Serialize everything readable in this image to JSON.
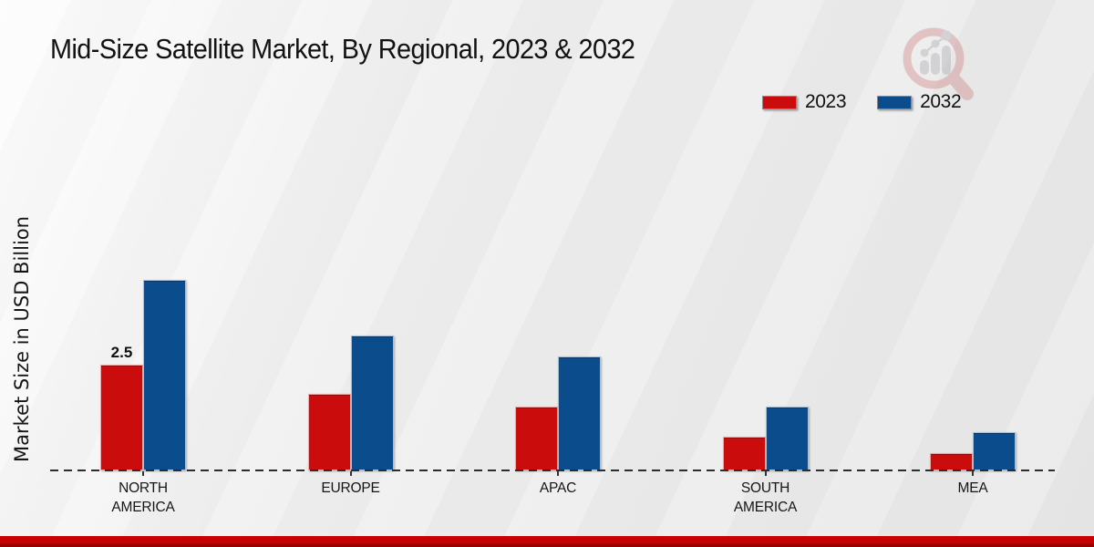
{
  "title": "Mid-Size Satellite Market, By Regional, 2023 & 2032",
  "chart_data": {
    "type": "bar",
    "title": "Mid-Size Satellite Market, By Regional, 2023 & 2032",
    "xlabel": "",
    "ylabel": "Market Size in USD Billion",
    "categories": [
      "NORTH AMERICA",
      "EUROPE",
      "APAC",
      "SOUTH AMERICA",
      "MEA"
    ],
    "category_lines": [
      [
        "NORTH",
        "AMERICA"
      ],
      [
        "EUROPE"
      ],
      [
        "APAC"
      ],
      [
        "SOUTH",
        "AMERICA"
      ],
      [
        "MEA"
      ]
    ],
    "series": [
      {
        "name": "2023",
        "color": "#cb0c0c",
        "values": [
          2.5,
          1.8,
          1.5,
          0.8,
          0.4
        ]
      },
      {
        "name": "2032",
        "color": "#0a4c8c",
        "values": [
          4.5,
          3.2,
          2.7,
          1.5,
          0.9
        ]
      }
    ],
    "data_labels": [
      {
        "series": 0,
        "category": 0,
        "text": "2.5"
      }
    ],
    "ylim": [
      0,
      5
    ],
    "grid": false,
    "legend_position": "top-right",
    "baseline_style": "dashed"
  },
  "colors": {
    "series_2023": "#cb0c0c",
    "series_2032": "#0a4c8c",
    "footer_bar": "#c70202",
    "axis_line": "#2d2d2d"
  },
  "icons": {
    "watermark": "magnifier-growth-chart-logo"
  }
}
